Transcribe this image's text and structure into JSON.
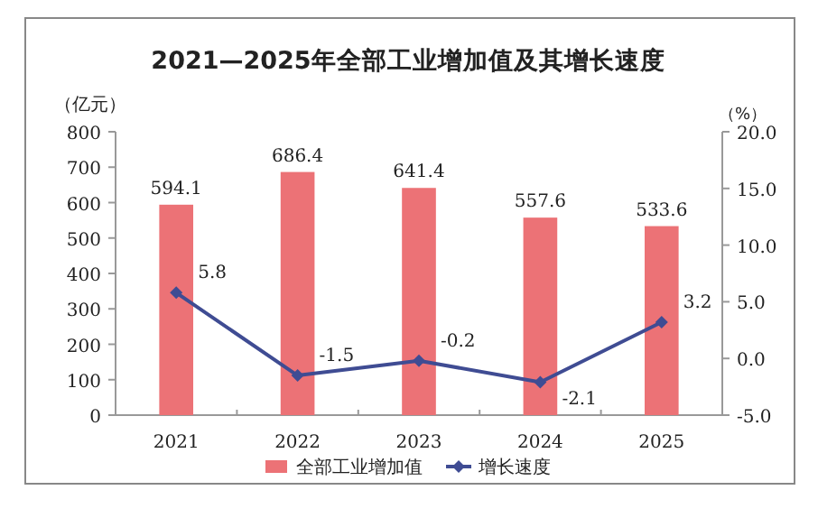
{
  "chart_data": {
    "type": "bar",
    "title": "2021—2025年全部工业增加值及其增长速度",
    "ylabel": "（亿元）",
    "y2label": "（%）",
    "categories": [
      "2021",
      "2022",
      "2023",
      "2024",
      "2025"
    ],
    "series": [
      {
        "name": "全部工业增加值",
        "color": "#ec7276",
        "values": [
          594.1,
          686.4,
          641.4,
          557.6,
          533.6
        ]
      },
      {
        "name": "增长速度",
        "type": "line",
        "axis": "y2",
        "color": "#3f4c93",
        "marker": "diamond",
        "values": [
          5.8,
          -1.5,
          -0.2,
          -2.1,
          3.2
        ]
      }
    ],
    "ylim": [
      0,
      800
    ],
    "yticks": [
      0,
      100,
      200,
      300,
      400,
      500,
      600,
      700,
      800
    ],
    "y2lim": [
      -5,
      20
    ],
    "y2ticks": [
      {
        "value": -5,
        "label": "-5.0"
      },
      {
        "value": 0,
        "label": "0.0"
      },
      {
        "value": 5,
        "label": "5.0"
      },
      {
        "value": 10,
        "label": "10.0"
      },
      {
        "value": 15,
        "label": "15.0"
      },
      {
        "value": 20,
        "label": "20.0"
      }
    ],
    "data_labels": true,
    "legend": "bottom",
    "grid": false
  }
}
